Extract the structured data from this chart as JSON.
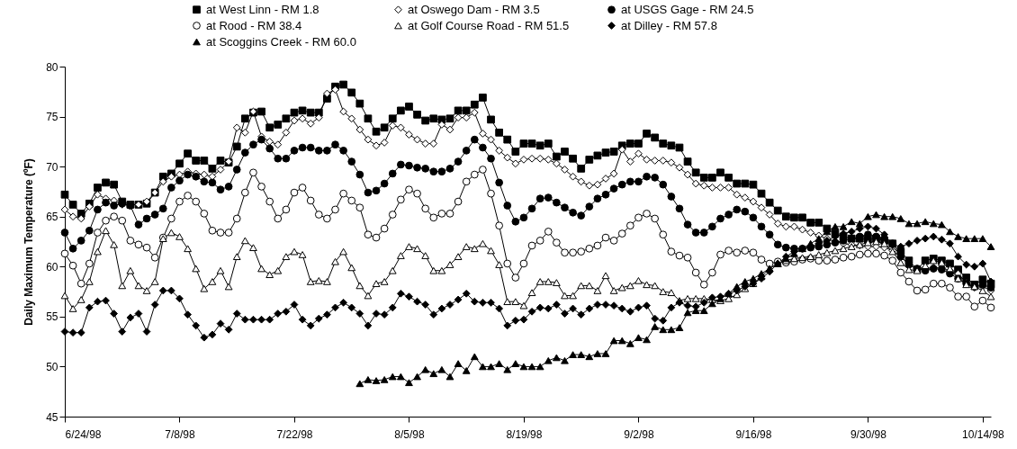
{
  "chart_data": {
    "type": "line",
    "ylabel": "Daily Maximum Temperature (ºF)",
    "x": [
      "1998-06-24",
      "1998-06-25",
      "1998-06-26",
      "1998-06-27",
      "1998-06-28",
      "1998-06-29",
      "1998-06-30",
      "1998-07-01",
      "1998-07-02",
      "1998-07-03",
      "1998-07-04",
      "1998-07-05",
      "1998-07-06",
      "1998-07-07",
      "1998-07-08",
      "1998-07-09",
      "1998-07-10",
      "1998-07-11",
      "1998-07-12",
      "1998-07-13",
      "1998-07-14",
      "1998-07-15",
      "1998-07-16",
      "1998-07-17",
      "1998-07-18",
      "1998-07-19",
      "1998-07-20",
      "1998-07-21",
      "1998-07-22",
      "1998-07-23",
      "1998-07-24",
      "1998-07-25",
      "1998-07-26",
      "1998-07-27",
      "1998-07-28",
      "1998-07-29",
      "1998-07-30",
      "1998-07-31",
      "1998-08-01",
      "1998-08-02",
      "1998-08-03",
      "1998-08-04",
      "1998-08-05",
      "1998-08-06",
      "1998-08-07",
      "1998-08-08",
      "1998-08-09",
      "1998-08-10",
      "1998-08-11",
      "1998-08-12",
      "1998-08-13",
      "1998-08-14",
      "1998-08-15",
      "1998-08-16",
      "1998-08-17",
      "1998-08-18",
      "1998-08-19",
      "1998-08-20",
      "1998-08-21",
      "1998-08-22",
      "1998-08-23",
      "1998-08-24",
      "1998-08-25",
      "1998-08-26",
      "1998-08-27",
      "1998-08-28",
      "1998-08-29",
      "1998-08-30",
      "1998-08-31",
      "1998-09-01",
      "1998-09-02",
      "1998-09-03",
      "1998-09-04",
      "1998-09-05",
      "1998-09-06",
      "1998-09-07",
      "1998-09-08",
      "1998-09-09",
      "1998-09-10",
      "1998-09-11",
      "1998-09-12",
      "1998-09-13",
      "1998-09-14",
      "1998-09-15",
      "1998-09-16",
      "1998-09-17",
      "1998-09-18",
      "1998-09-19",
      "1998-09-20",
      "1998-09-21",
      "1998-09-22",
      "1998-09-23",
      "1998-09-24",
      "1998-09-25",
      "1998-09-26",
      "1998-09-27",
      "1998-09-28",
      "1998-09-29",
      "1998-09-30",
      "1998-10-01",
      "1998-10-02",
      "1998-10-03",
      "1998-10-04",
      "1998-10-05",
      "1998-10-06",
      "1998-10-07",
      "1998-10-08",
      "1998-10-09",
      "1998-10-10",
      "1998-10-11",
      "1998-10-12",
      "1998-10-13",
      "1998-10-14",
      "1998-10-15"
    ],
    "series": [
      {
        "name": "at West Linn - RM 1.8",
        "color": "#000000",
        "marker": "square",
        "values": [
          67.2,
          66.2,
          65.3,
          66.3,
          67.9,
          68.4,
          68.2,
          66.5,
          66.2,
          66.2,
          66.3,
          67.4,
          69.0,
          69.3,
          70.3,
          71.3,
          70.6,
          70.6,
          69.8,
          70.6,
          70.4,
          72.0,
          74.8,
          75.4,
          75.5,
          73.9,
          74.2,
          74.8,
          75.4,
          75.6,
          75.4,
          75.4,
          76.8,
          78.0,
          78.2,
          77.4,
          76.3,
          74.8,
          73.5,
          73.9,
          74.8,
          75.6,
          76.0,
          75.2,
          74.6,
          74.8,
          74.7,
          74.8,
          75.6,
          75.6,
          76.2,
          76.9,
          74.7,
          73.4,
          72.7,
          71.5,
          72.3,
          72.3,
          72.1,
          72.3,
          71.0,
          71.5,
          70.8,
          69.8,
          70.7,
          71.1,
          71.4,
          71.5,
          72.1,
          72.3,
          72.3,
          73.3,
          72.9,
          72.3,
          72.1,
          71.9,
          70.5,
          69.4,
          68.9,
          68.9,
          69.4,
          68.9,
          68.3,
          68.3,
          68.2,
          67.3,
          66.4,
          65.6,
          65.0,
          64.9,
          64.9,
          64.4,
          64.4,
          63.8,
          63.3,
          63.0,
          62.8,
          62.8,
          62.7,
          62.8,
          62.6,
          62.3,
          61.5,
          60.6,
          59.7,
          60.6,
          60.8,
          60.6,
          60.3,
          59.7,
          58.9,
          58.2,
          58.7,
          58.3
        ]
      },
      {
        "name": "at Oswego Dam - RM 3.5",
        "color": "#ffffff",
        "marker": "diamond",
        "values": [
          65.7,
          65.0,
          64.8,
          66.0,
          67.2,
          66.8,
          66.6,
          66.2,
          66.2,
          66.2,
          66.5,
          67.4,
          68.5,
          69.0,
          69.2,
          69.5,
          69.3,
          69.2,
          69.0,
          69.7,
          70.5,
          73.9,
          73.4,
          75.5,
          73.0,
          72.5,
          72.2,
          73.4,
          74.6,
          74.8,
          74.3,
          74.9,
          77.3,
          77.7,
          75.5,
          74.8,
          73.7,
          72.7,
          72.1,
          72.4,
          74.1,
          73.9,
          73.2,
          72.7,
          72.3,
          72.3,
          74.2,
          73.7,
          74.9,
          74.9,
          75.4,
          73.3,
          72.7,
          71.6,
          70.9,
          70.3,
          70.7,
          70.8,
          70.8,
          70.7,
          70.3,
          69.7,
          69.0,
          68.5,
          68.1,
          68.2,
          68.8,
          69.3,
          71.7,
          70.5,
          71.3,
          70.7,
          70.6,
          70.6,
          70.4,
          69.9,
          69.2,
          68.3,
          68.1,
          67.9,
          67.9,
          67.9,
          67.2,
          66.9,
          66.5,
          65.9,
          65.2,
          64.3,
          64.0,
          64.0,
          63.7,
          63.4,
          63.1,
          62.8,
          62.5,
          62.3,
          62.2,
          62.1,
          62.0,
          62.0,
          61.9,
          61.6,
          61.0,
          60.2,
          59.7,
          59.8,
          59.9,
          59.9,
          59.6,
          59.3,
          58.4,
          57.9,
          58.0,
          57.6
        ]
      },
      {
        "name": "at USGS Gage - RM 24.5",
        "color": "#000000",
        "marker": "circle",
        "values": [
          63.4,
          61.8,
          62.6,
          63.6,
          65.7,
          66.4,
          66.1,
          66.3,
          66.1,
          64.2,
          64.8,
          65.2,
          65.8,
          67.9,
          68.6,
          69.2,
          69.0,
          68.5,
          68.4,
          67.7,
          68.0,
          69.7,
          71.4,
          72.2,
          72.7,
          71.8,
          70.8,
          70.8,
          71.6,
          71.9,
          71.9,
          71.6,
          71.6,
          72.2,
          71.6,
          70.5,
          69.2,
          67.4,
          67.6,
          68.3,
          69.3,
          70.2,
          70.1,
          69.9,
          69.8,
          69.5,
          69.5,
          69.8,
          70.5,
          71.6,
          72.7,
          71.9,
          70.8,
          68.4,
          66.1,
          64.5,
          64.9,
          65.8,
          66.8,
          66.9,
          66.4,
          65.9,
          65.4,
          65.1,
          66.0,
          66.8,
          67.2,
          67.8,
          68.2,
          68.5,
          68.5,
          69.0,
          68.9,
          68.2,
          67.0,
          65.8,
          64.2,
          63.4,
          63.4,
          64.0,
          64.8,
          65.2,
          65.7,
          65.5,
          64.9,
          64.0,
          63.2,
          62.2,
          61.9,
          61.8,
          61.8,
          61.9,
          62.0,
          62.2,
          62.4,
          62.6,
          62.8,
          63.0,
          63.2,
          63.0,
          62.8,
          62.3,
          61.0,
          60.2,
          59.8,
          59.6,
          59.8,
          59.7,
          59.3,
          58.8,
          58.3,
          58.0,
          58.2,
          57.9
        ]
      },
      {
        "name": "at Rood - RM 38.4",
        "color": "#ffffff",
        "marker": "circle",
        "values": [
          61.3,
          60.1,
          58.3,
          60.3,
          63.4,
          64.6,
          65.0,
          64.6,
          62.6,
          62.2,
          61.9,
          60.9,
          62.9,
          64.8,
          66.5,
          67.1,
          66.5,
          65.3,
          63.6,
          63.4,
          63.4,
          64.8,
          67.4,
          69.4,
          68.0,
          66.5,
          64.8,
          65.7,
          67.4,
          67.9,
          66.6,
          65.2,
          64.8,
          65.7,
          67.3,
          66.6,
          65.9,
          63.2,
          62.9,
          63.8,
          65.2,
          66.7,
          67.7,
          67.3,
          65.8,
          64.9,
          65.3,
          65.3,
          66.5,
          68.5,
          69.2,
          69.7,
          67.3,
          64.1,
          60.3,
          58.9,
          60.3,
          62.1,
          62.6,
          63.5,
          62.4,
          61.4,
          61.4,
          61.5,
          61.8,
          62.1,
          62.9,
          62.6,
          63.3,
          64.1,
          64.9,
          65.3,
          64.8,
          63.2,
          61.5,
          61.1,
          60.9,
          59.4,
          58.2,
          59.4,
          61.2,
          61.6,
          61.4,
          61.6,
          61.4,
          60.7,
          60.3,
          60.5,
          60.4,
          60.5,
          60.7,
          60.8,
          60.6,
          60.6,
          60.7,
          60.9,
          61.0,
          61.2,
          61.3,
          61.3,
          61.1,
          60.6,
          59.4,
          58.5,
          57.6,
          57.7,
          58.3,
          58.3,
          57.9,
          57.0,
          57.0,
          56.0,
          56.6,
          55.9
        ]
      },
      {
        "name": "at Golf Course Road - RM 51.5",
        "color": "#ffffff",
        "marker": "triangle",
        "values": [
          57.1,
          55.8,
          56.7,
          58.5,
          61.5,
          63.6,
          62.2,
          58.1,
          59.6,
          58.1,
          57.6,
          58.5,
          62.8,
          63.4,
          63.0,
          61.8,
          59.8,
          57.8,
          58.5,
          59.6,
          58.0,
          61.0,
          62.6,
          61.9,
          59.8,
          59.2,
          59.6,
          61.0,
          61.5,
          61.2,
          58.5,
          58.6,
          58.5,
          60.5,
          61.5,
          59.9,
          58.1,
          57.1,
          58.3,
          58.5,
          59.6,
          61.1,
          62.0,
          61.8,
          61.1,
          59.6,
          59.6,
          60.2,
          61.0,
          62.0,
          61.8,
          62.3,
          61.6,
          60.2,
          56.5,
          56.5,
          56.1,
          57.4,
          58.5,
          58.5,
          58.4,
          57.1,
          57.1,
          58.1,
          58.1,
          57.6,
          59.1,
          57.6,
          57.9,
          58.1,
          58.6,
          58.2,
          58.1,
          57.5,
          57.4,
          56.6,
          56.8,
          56.8,
          56.8,
          56.7,
          56.6,
          56.8,
          57.2,
          57.8,
          58.3,
          59.0,
          59.8,
          60.3,
          60.6,
          60.8,
          60.9,
          61.0,
          61.2,
          61.4,
          61.6,
          61.8,
          62.0,
          62.2,
          62.4,
          62.5,
          62.3,
          61.5,
          60.4,
          59.7,
          59.6,
          60.1,
          60.6,
          60.4,
          59.8,
          58.8,
          58.2,
          58.0,
          57.6,
          57.0
        ]
      },
      {
        "name": "at Dilley - RM 57.8",
        "color": "#000000",
        "marker": "diamond",
        "values": [
          53.5,
          53.4,
          53.4,
          55.9,
          56.5,
          56.6,
          55.3,
          53.5,
          54.9,
          55.3,
          53.5,
          56.2,
          57.6,
          57.6,
          56.8,
          55.2,
          54.1,
          52.9,
          53.2,
          54.3,
          53.7,
          55.3,
          54.7,
          54.7,
          54.7,
          54.7,
          55.3,
          55.5,
          56.2,
          54.7,
          54.1,
          54.8,
          55.2,
          55.9,
          56.4,
          55.9,
          55.3,
          54.1,
          55.3,
          55.2,
          55.9,
          57.3,
          57.0,
          56.5,
          56.2,
          55.2,
          55.8,
          56.2,
          56.7,
          57.3,
          56.5,
          56.4,
          56.4,
          55.8,
          54.1,
          54.6,
          54.7,
          55.5,
          55.9,
          55.8,
          56.2,
          55.3,
          55.8,
          55.2,
          55.8,
          56.2,
          56.2,
          56.1,
          55.8,
          55.5,
          55.9,
          56.1,
          54.8,
          54.6,
          55.9,
          56.4,
          56.1,
          56.0,
          56.4,
          56.9,
          57.0,
          57.3,
          57.6,
          58.0,
          58.3,
          58.8,
          59.5,
          60.3,
          61.0,
          61.5,
          61.8,
          62.0,
          62.3,
          62.6,
          63.0,
          63.3,
          63.5,
          63.8,
          64.0,
          63.8,
          63.2,
          62.2,
          62.0,
          62.3,
          62.6,
          62.8,
          63.0,
          62.7,
          62.3,
          61.0,
          60.2,
          60.0,
          60.3,
          58.5
        ]
      },
      {
        "name": "at Scoggins Creek - RM 60.0",
        "color": "#000000",
        "marker": "triangle",
        "values": [
          null,
          null,
          null,
          null,
          null,
          null,
          null,
          null,
          null,
          null,
          null,
          null,
          null,
          null,
          null,
          null,
          null,
          null,
          null,
          null,
          null,
          null,
          null,
          null,
          null,
          null,
          null,
          null,
          null,
          null,
          null,
          null,
          null,
          null,
          null,
          null,
          48.3,
          48.7,
          48.6,
          48.7,
          49.0,
          49.0,
          48.4,
          49.0,
          49.7,
          49.3,
          49.7,
          49.0,
          50.3,
          49.6,
          51.0,
          50.0,
          50.0,
          50.3,
          49.7,
          50.3,
          50.0,
          50.0,
          50.0,
          50.6,
          50.9,
          50.6,
          51.2,
          51.2,
          51.0,
          51.3,
          51.3,
          52.6,
          52.6,
          52.3,
          52.9,
          52.7,
          54.0,
          53.7,
          53.7,
          53.9,
          55.4,
          55.6,
          55.6,
          56.3,
          56.8,
          57.3,
          58.0,
          58.5,
          58.8,
          59.3,
          59.8,
          60.3,
          60.8,
          61.3,
          61.8,
          62.3,
          62.8,
          63.5,
          64.0,
          64.0,
          64.5,
          64.3,
          65.0,
          65.2,
          65.0,
          65.0,
          64.8,
          64.3,
          64.3,
          64.5,
          64.3,
          64.2,
          63.5,
          63.0,
          62.8,
          62.8,
          62.8,
          62.0
        ]
      }
    ],
    "xlim": [
      "1998-06-24",
      "1998-10-15"
    ],
    "xticks": [
      {
        "value": "1998-06-24",
        "label": "6/24/98"
      },
      {
        "value": "1998-07-08",
        "label": "7/8/98"
      },
      {
        "value": "1998-07-22",
        "label": "7/22/98"
      },
      {
        "value": "1998-08-05",
        "label": "8/5/98"
      },
      {
        "value": "1998-08-19",
        "label": "8/19/98"
      },
      {
        "value": "1998-09-02",
        "label": "9/2/98"
      },
      {
        "value": "1998-09-16",
        "label": "9/16/98"
      },
      {
        "value": "1998-09-30",
        "label": "9/30/98"
      },
      {
        "value": "1998-10-14",
        "label": "10/14/98"
      }
    ],
    "ylim": [
      45,
      80
    ],
    "yticks": [
      45,
      50,
      55,
      60,
      65,
      70,
      75,
      80
    ],
    "grid": false,
    "legend": "top",
    "line_style": "solid"
  }
}
